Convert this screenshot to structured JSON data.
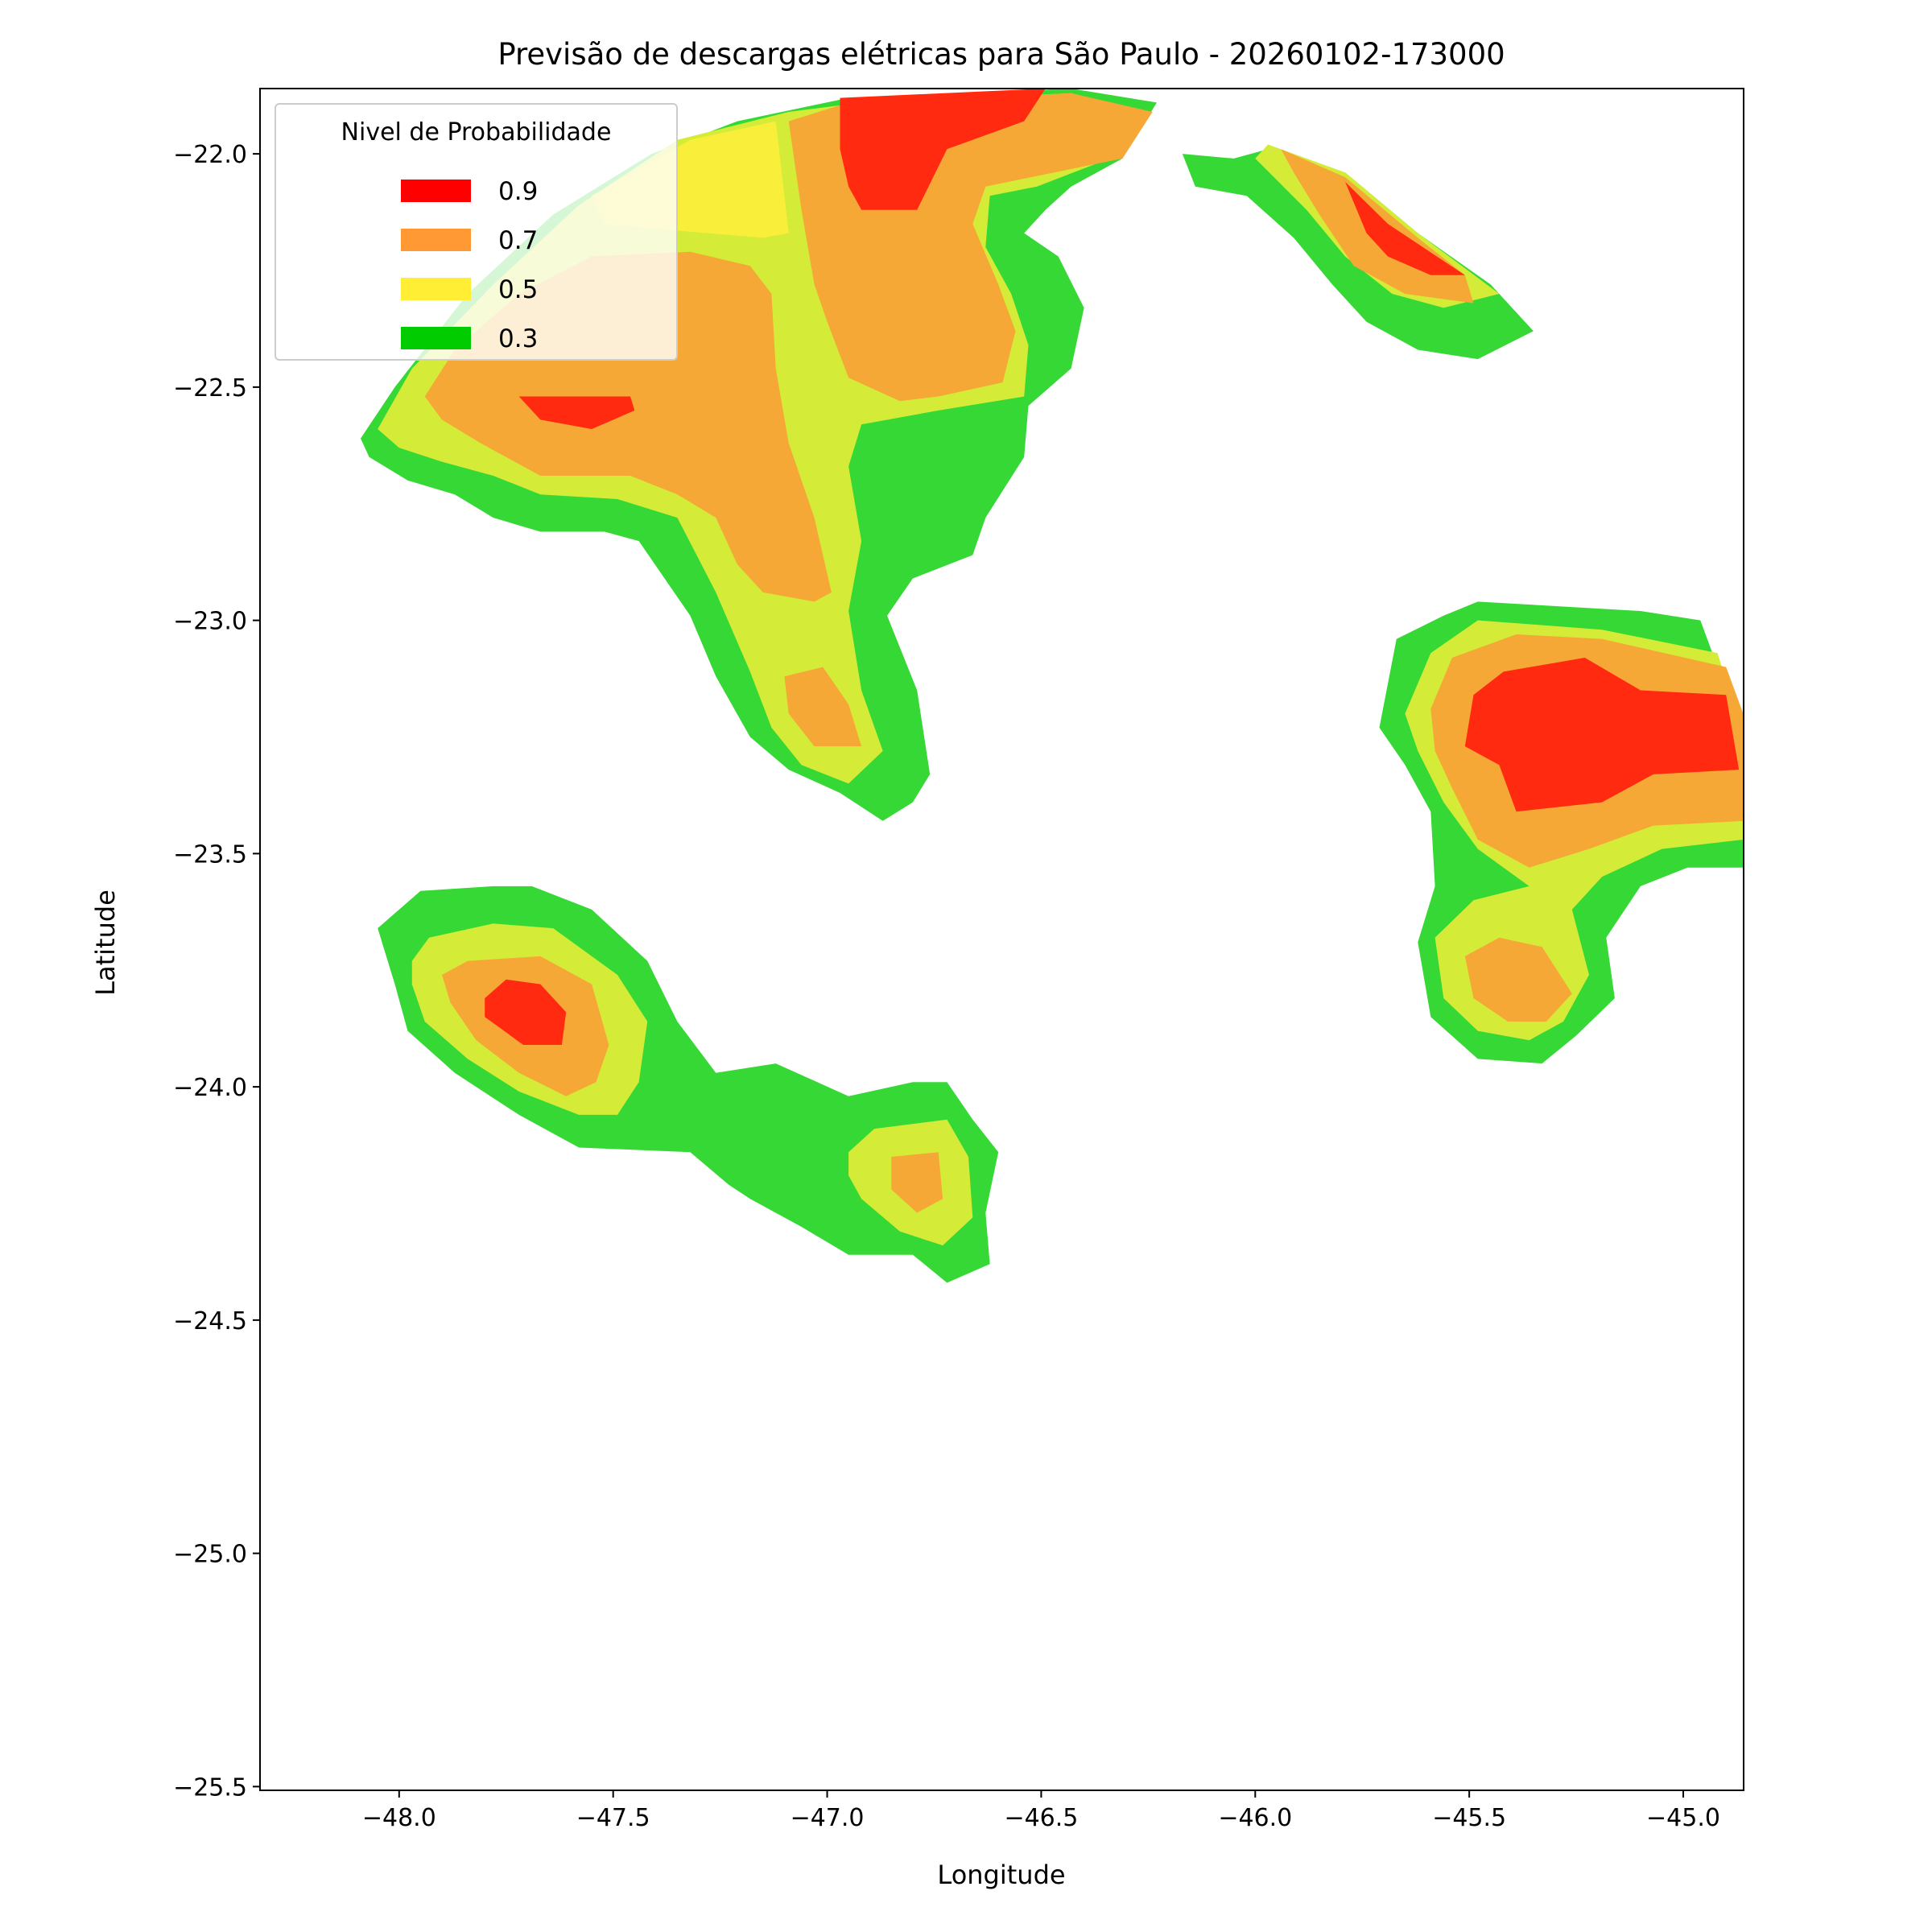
{
  "chart_data": {
    "type": "contourf",
    "title": "Previsão de descargas elétricas para São Paulo - 20260102-173000",
    "xlabel": "Longitude",
    "ylabel": "Latitude",
    "xlim": [
      -48.325,
      -44.859
    ],
    "ylim": [
      -25.508,
      -21.86
    ],
    "xticks": [
      {
        "value": -48,
        "label": "−48.0"
      },
      {
        "value": -47.5,
        "label": "−47.5"
      },
      {
        "value": -47,
        "label": "−47.0"
      },
      {
        "value": -46.5,
        "label": "−46.5"
      },
      {
        "value": -46,
        "label": "−46.0"
      },
      {
        "value": -45.5,
        "label": "−45.5"
      },
      {
        "value": -45,
        "label": "−45.0"
      }
    ],
    "yticks": [
      {
        "value": -22,
        "label": "−22.0"
      },
      {
        "value": -22.5,
        "label": "−22.5"
      },
      {
        "value": -23,
        "label": "−23.0"
      },
      {
        "value": -23.5,
        "label": "−23.5"
      },
      {
        "value": -24,
        "label": "−24.0"
      },
      {
        "value": -24.5,
        "label": "−24.5"
      },
      {
        "value": -25,
        "label": "−25.0"
      },
      {
        "value": -25.5,
        "label": "−25.5"
      }
    ],
    "legend": {
      "title": "Nivel de Probabilidade",
      "position": "upper left",
      "entries": [
        {
          "label": "0.9",
          "color": "#ff0000"
        },
        {
          "label": "0.7",
          "color": "#ff9933"
        },
        {
          "label": "0.5",
          "color": "#ffee33"
        },
        {
          "label": "0.3",
          "color": "#00cc00"
        }
      ]
    },
    "regions": [
      {
        "color": "#35d835",
        "lon": [
          -48.09,
          -48.01,
          -47.84,
          -47.64,
          -47.41,
          -47.21,
          -46.95,
          -46.43,
          -46.23,
          -46.31,
          -46.43,
          -46.49,
          -46.54,
          -46.46,
          -46.4,
          -46.43,
          -46.53,
          -46.54,
          -46.63,
          -46.66,
          -46.8,
          -46.86,
          -46.79,
          -46.76,
          -46.8,
          -46.87,
          -46.97,
          -47.09,
          -47.18,
          -47.26,
          -47.32,
          -47.44,
          -47.52,
          -47.67,
          -47.78,
          -47.87,
          -47.98,
          -48.07
        ],
        "lat": [
          -22.61,
          -22.5,
          -22.3,
          -22.13,
          -22.0,
          -21.93,
          -21.88,
          -21.86,
          -21.89,
          -22.01,
          -22.07,
          -22.12,
          -22.17,
          -22.22,
          -22.33,
          -22.46,
          -22.54,
          -22.65,
          -22.78,
          -22.86,
          -22.91,
          -22.99,
          -23.15,
          -23.33,
          -23.39,
          -23.43,
          -23.37,
          -23.32,
          -23.25,
          -23.12,
          -22.99,
          -22.83,
          -22.81,
          -22.81,
          -22.78,
          -22.73,
          -22.7,
          -22.65
        ]
      },
      {
        "color": "#35d835",
        "lon": [
          -46.17,
          -46.05,
          -45.97,
          -45.79,
          -45.62,
          -45.45,
          -45.35,
          -45.48,
          -45.62,
          -45.74,
          -45.82,
          -45.91,
          -46.02,
          -46.14
        ],
        "lat": [
          -22.0,
          -22.01,
          -21.99,
          -22.04,
          -22.17,
          -22.28,
          -22.38,
          -22.44,
          -22.42,
          -22.36,
          -22.28,
          -22.18,
          -22.09,
          -22.07
        ]
      },
      {
        "color": "#35d835",
        "lon": [
          -48.05,
          -47.95,
          -47.78,
          -47.69,
          -47.55,
          -47.42,
          -47.35,
          -47.26,
          -47.12,
          -46.95,
          -46.8,
          -46.72,
          -46.66,
          -46.6,
          -46.63,
          -46.62,
          -46.72,
          -46.8,
          -46.95,
          -47.06,
          -47.18,
          -47.23,
          -47.32,
          -47.58,
          -47.72,
          -47.87,
          -47.98,
          -48.01
        ],
        "lat": [
          -23.66,
          -23.58,
          -23.57,
          -23.57,
          -23.62,
          -23.73,
          -23.86,
          -23.97,
          -23.95,
          -24.02,
          -23.99,
          -23.99,
          -24.07,
          -24.14,
          -24.27,
          -24.38,
          -24.42,
          -24.36,
          -24.36,
          -24.3,
          -24.24,
          -24.21,
          -24.14,
          -24.13,
          -24.06,
          -23.97,
          -23.88,
          -23.78
        ]
      },
      {
        "color": "#35d835",
        "lon": [
          -45.71,
          -45.67,
          -45.56,
          -45.48,
          -45.1,
          -44.96,
          -44.92,
          -44.86,
          -44.86,
          -44.99,
          -45.1,
          -45.18,
          -45.16,
          -45.25,
          -45.33,
          -45.48,
          -45.59,
          -45.62,
          -45.58,
          -45.59,
          -45.65
        ],
        "lat": [
          -23.23,
          -23.04,
          -22.99,
          -22.96,
          -22.98,
          -23.0,
          -23.1,
          -23.25,
          -23.53,
          -23.53,
          -23.57,
          -23.68,
          -23.81,
          -23.89,
          -23.95,
          -23.94,
          -23.85,
          -23.69,
          -23.57,
          -23.41,
          -23.31
        ]
      },
      {
        "color": "#d4ec38",
        "lon": [
          -48.05,
          -47.97,
          -47.78,
          -47.58,
          -47.35,
          -47.09,
          -46.92,
          -46.43,
          -46.26,
          -46.34,
          -46.51,
          -46.62,
          -46.63,
          -46.57,
          -46.53,
          -46.54,
          -46.74,
          -46.92,
          -46.95,
          -46.92,
          -46.95,
          -46.92,
          -46.87,
          -46.95,
          -47.06,
          -47.13,
          -47.18,
          -47.26,
          -47.35,
          -47.49,
          -47.67,
          -47.78,
          -47.9,
          -48.0
        ],
        "lat": [
          -22.59,
          -22.46,
          -22.28,
          -22.11,
          -21.97,
          -21.91,
          -21.89,
          -21.87,
          -21.91,
          -22.01,
          -22.07,
          -22.09,
          -22.2,
          -22.3,
          -22.41,
          -22.52,
          -22.55,
          -22.58,
          -22.67,
          -22.83,
          -22.98,
          -23.15,
          -23.28,
          -23.35,
          -23.31,
          -23.23,
          -23.11,
          -22.94,
          -22.78,
          -22.74,
          -22.73,
          -22.69,
          -22.66,
          -22.63
        ]
      },
      {
        "color": "#d4ec38",
        "lon": [
          -45.97,
          -45.79,
          -45.62,
          -45.43,
          -45.56,
          -45.68,
          -45.79,
          -45.88,
          -46.0
        ],
        "lat": [
          -21.98,
          -22.04,
          -22.17,
          -22.3,
          -22.33,
          -22.3,
          -22.22,
          -22.12,
          -22.01
        ]
      },
      {
        "color": "#d4ec38",
        "lon": [
          -47.97,
          -47.93,
          -47.78,
          -47.64,
          -47.49,
          -47.42,
          -47.44,
          -47.49,
          -47.58,
          -47.72,
          -47.84,
          -47.94,
          -47.97
        ],
        "lat": [
          -23.73,
          -23.68,
          -23.65,
          -23.66,
          -23.76,
          -23.86,
          -23.99,
          -24.06,
          -24.06,
          -24.01,
          -23.94,
          -23.86,
          -23.78
        ]
      },
      {
        "color": "#d4ec38",
        "lon": [
          -46.95,
          -46.89,
          -46.72,
          -46.67,
          -46.66,
          -46.73,
          -46.83,
          -46.92,
          -46.95
        ],
        "lat": [
          -24.14,
          -24.09,
          -24.07,
          -24.15,
          -24.28,
          -24.34,
          -24.31,
          -24.24,
          -24.19
        ]
      },
      {
        "color": "#d4ec38",
        "lon": [
          -45.65,
          -45.59,
          -45.48,
          -45.19,
          -44.92,
          -44.86,
          -44.86,
          -45.05,
          -45.19,
          -45.26,
          -45.22,
          -45.28,
          -45.36,
          -45.48,
          -45.56,
          -45.58,
          -45.49,
          -45.36,
          -45.48,
          -45.56,
          -45.62
        ],
        "lat": [
          -23.2,
          -23.07,
          -23.0,
          -23.02,
          -23.07,
          -23.25,
          -23.47,
          -23.49,
          -23.55,
          -23.62,
          -23.76,
          -23.86,
          -23.9,
          -23.88,
          -23.81,
          -23.68,
          -23.6,
          -23.57,
          -23.49,
          -23.39,
          -23.28
        ]
      },
      {
        "color": "#f9ef3a",
        "lon": [
          -47.55,
          -47.32,
          -47.12,
          -47.09,
          -47.15,
          -47.41,
          -47.52
        ],
        "lat": [
          -22.09,
          -21.97,
          -21.93,
          -22.17,
          -22.18,
          -22.16,
          -22.15
        ]
      },
      {
        "color": "#f5a836",
        "lon": [
          -47.94,
          -47.87,
          -47.72,
          -47.55,
          -47.32,
          -47.18,
          -47.13,
          -47.12,
          -47.09,
          -47.03,
          -46.99,
          -47.03,
          -47.15,
          -47.21,
          -47.26,
          -47.35,
          -47.46,
          -47.67,
          -47.81,
          -47.9
        ],
        "lat": [
          -22.52,
          -22.42,
          -22.3,
          -22.22,
          -22.21,
          -22.24,
          -22.3,
          -22.46,
          -22.62,
          -22.78,
          -22.94,
          -22.96,
          -22.94,
          -22.88,
          -22.78,
          -22.73,
          -22.69,
          -22.69,
          -22.62,
          -22.57
        ]
      },
      {
        "color": "#f5a836",
        "lon": [
          -47.09,
          -46.95,
          -46.43,
          -46.24,
          -46.31,
          -46.63,
          -46.66,
          -46.6,
          -46.56,
          -46.59,
          -46.74,
          -46.83,
          -46.95,
          -47.0,
          -47.03,
          -47.06
        ],
        "lat": [
          -21.93,
          -21.89,
          -21.87,
          -21.91,
          -22.01,
          -22.07,
          -22.15,
          -22.28,
          -22.38,
          -22.49,
          -22.52,
          -22.53,
          -22.48,
          -22.36,
          -22.28,
          -22.12
        ]
      },
      {
        "color": "#f5a836",
        "lon": [
          -47.1,
          -47.01,
          -46.95,
          -46.92,
          -47.03,
          -47.09
        ],
        "lat": [
          -23.12,
          -23.1,
          -23.18,
          -23.27,
          -23.27,
          -23.2
        ]
      },
      {
        "color": "#f5a836",
        "lon": [
          -45.94,
          -45.79,
          -45.62,
          -45.51,
          -45.49,
          -45.65,
          -45.77,
          -45.85,
          -45.91
        ],
        "lat": [
          -21.99,
          -22.05,
          -22.18,
          -22.26,
          -22.32,
          -22.3,
          -22.24,
          -22.13,
          -22.04
        ]
      },
      {
        "color": "#f5a836",
        "lon": [
          -47.9,
          -47.84,
          -47.67,
          -47.55,
          -47.51,
          -47.54,
          -47.61,
          -47.72,
          -47.82,
          -47.88
        ],
        "lat": [
          -23.76,
          -23.73,
          -23.72,
          -23.78,
          -23.91,
          -23.99,
          -24.02,
          -23.97,
          -23.9,
          -23.82
        ]
      },
      {
        "color": "#f5a836",
        "lon": [
          -46.85,
          -46.74,
          -46.73,
          -46.79,
          -46.85
        ],
        "lat": [
          -24.15,
          -24.14,
          -24.24,
          -24.27,
          -24.22
        ]
      },
      {
        "color": "#f5a836",
        "lon": [
          -45.59,
          -45.54,
          -45.39,
          -45.19,
          -44.9,
          -44.86,
          -44.86,
          -45.07,
          -45.22,
          -45.36,
          -45.48,
          -45.54,
          -45.58
        ],
        "lat": [
          -23.19,
          -23.08,
          -23.03,
          -23.04,
          -23.1,
          -23.2,
          -23.43,
          -23.44,
          -23.49,
          -23.53,
          -23.47,
          -23.36,
          -23.28
        ]
      },
      {
        "color": "#f5a836",
        "lon": [
          -45.51,
          -45.43,
          -45.33,
          -45.26,
          -45.32,
          -45.41,
          -45.49
        ],
        "lat": [
          -23.72,
          -23.68,
          -23.7,
          -23.8,
          -23.86,
          -23.86,
          -23.81
        ]
      },
      {
        "color": "#ff2a10",
        "lon": [
          -46.97,
          -46.49,
          -46.54,
          -46.72,
          -46.79,
          -46.92,
          -46.95,
          -46.97
        ],
        "lat": [
          -21.88,
          -21.86,
          -21.93,
          -21.99,
          -22.12,
          -22.12,
          -22.07,
          -21.99
        ]
      },
      {
        "color": "#ff2a10",
        "lon": [
          -47.72,
          -47.46,
          -47.45,
          -47.55,
          -47.67
        ],
        "lat": [
          -22.52,
          -22.52,
          -22.55,
          -22.59,
          -22.57
        ]
      },
      {
        "color": "#ff2a10",
        "lon": [
          -45.79,
          -45.69,
          -45.51,
          -45.59,
          -45.69,
          -45.74
        ],
        "lat": [
          -22.06,
          -22.15,
          -22.26,
          -22.26,
          -22.22,
          -22.17
        ]
      },
      {
        "color": "#ff2a10",
        "lon": [
          -47.8,
          -47.75,
          -47.67,
          -47.61,
          -47.62,
          -47.71,
          -47.8
        ],
        "lat": [
          -23.81,
          -23.77,
          -23.78,
          -23.84,
          -23.91,
          -23.91,
          -23.85
        ]
      },
      {
        "color": "#ff2a10",
        "lon": [
          -45.49,
          -45.42,
          -45.23,
          -45.1,
          -44.9,
          -44.87,
          -45.07,
          -45.19,
          -45.39,
          -45.43,
          -45.51
        ],
        "lat": [
          -23.16,
          -23.11,
          -23.08,
          -23.15,
          -23.16,
          -23.32,
          -23.33,
          -23.39,
          -23.41,
          -23.31,
          -23.27
        ]
      }
    ]
  }
}
